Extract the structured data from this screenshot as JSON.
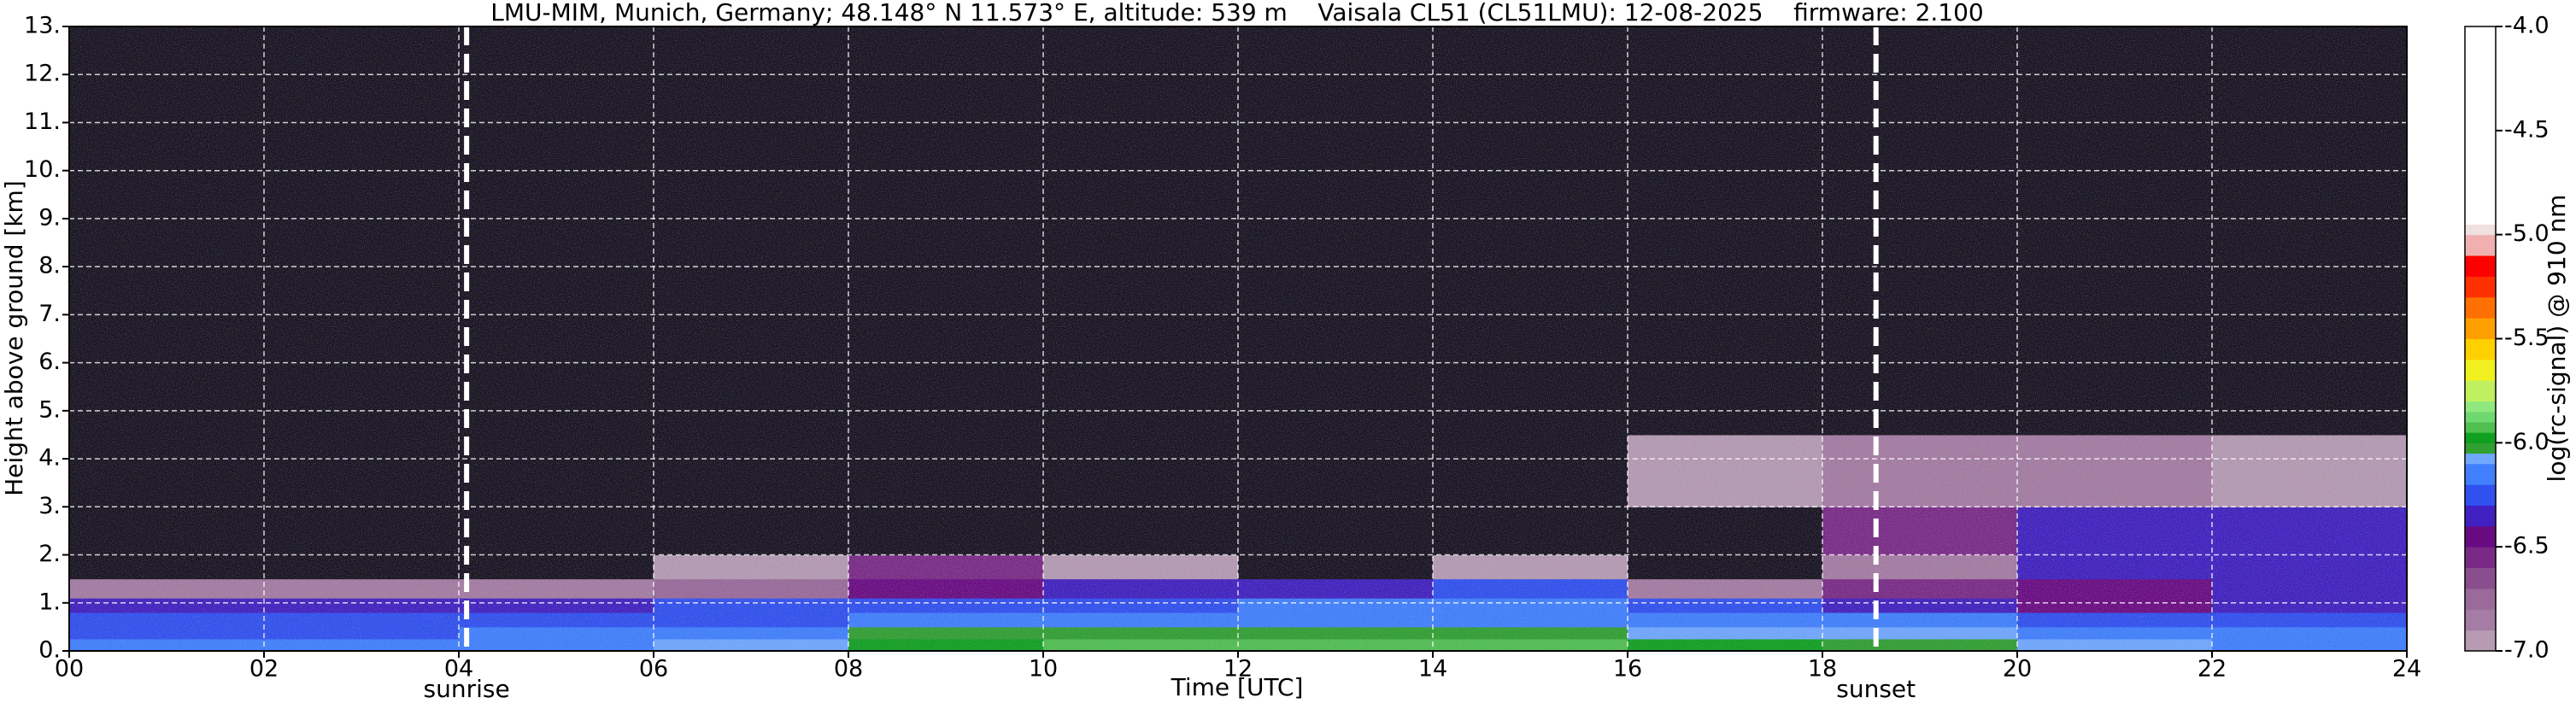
{
  "chart_data": {
    "type": "heatmap",
    "title": "LMU-MIM, Munich, Germany; 48.148° N 11.573° E, altitude: 539 m    Vaisala CL51 (CL51LMU): 12-08-2025    firmware: 2.100",
    "xlabel": "Time [UTC]",
    "ylabel": "Height above ground [km]",
    "colorbar_label": "log(rc-signal) @ 910 nm",
    "xlim": [
      0,
      24
    ],
    "xticks": [
      {
        "value": 0,
        "label": "00"
      },
      {
        "value": 2,
        "label": "02"
      },
      {
        "value": 4,
        "label": "04"
      },
      {
        "value": 6,
        "label": "06"
      },
      {
        "value": 8,
        "label": "08"
      },
      {
        "value": 10,
        "label": "10"
      },
      {
        "value": 12,
        "label": "12"
      },
      {
        "value": 14,
        "label": "14"
      },
      {
        "value": 16,
        "label": "16"
      },
      {
        "value": 18,
        "label": "18"
      },
      {
        "value": 20,
        "label": "20"
      },
      {
        "value": 22,
        "label": "22"
      },
      {
        "value": 24,
        "label": "24"
      }
    ],
    "ylim": [
      0,
      13
    ],
    "yticks": [
      {
        "value": 0,
        "label": "0."
      },
      {
        "value": 1,
        "label": "1."
      },
      {
        "value": 2,
        "label": "2."
      },
      {
        "value": 3,
        "label": "3."
      },
      {
        "value": 4,
        "label": "4."
      },
      {
        "value": 5,
        "label": "5."
      },
      {
        "value": 6,
        "label": "6."
      },
      {
        "value": 7,
        "label": "7."
      },
      {
        "value": 8,
        "label": "8."
      },
      {
        "value": 9,
        "label": "9."
      },
      {
        "value": 10,
        "label": "10."
      },
      {
        "value": 11,
        "label": "11."
      },
      {
        "value": 12,
        "label": "12."
      },
      {
        "value": 13,
        "label": "13."
      }
    ],
    "clim": [
      -7,
      -4
    ],
    "cticks": [
      {
        "value": -7,
        "label": "-7.0"
      },
      -6.5,
      {
        "value": -6,
        "label": "-6.0"
      },
      -5.5,
      {
        "value": -5,
        "label": "-5.0"
      },
      -4.5,
      {
        "value": -4,
        "label": "-4.0"
      }
    ],
    "grid": true,
    "under_color": "#17121f",
    "colorscale": [
      {
        "value": -7,
        "color": "#b69bb3"
      },
      {
        "value": -6.9,
        "color": "#a57ca3"
      },
      {
        "value": -6.8,
        "color": "#9a6a9a"
      },
      {
        "value": -6.7,
        "color": "#8a4e8e"
      },
      {
        "value": -6.6,
        "color": "#7a2a86"
      },
      {
        "value": -6.5,
        "color": "#6a0a82"
      },
      {
        "value": -6.4,
        "color": "#4020c0"
      },
      {
        "value": -6.3,
        "color": "#3050f0"
      },
      {
        "value": -6.2,
        "color": "#4080ff"
      },
      {
        "value": -6.1,
        "color": "#70a8ff"
      },
      {
        "value": -6.05,
        "color": "#30a030"
      },
      {
        "value": -6,
        "color": "#10a020"
      },
      {
        "value": -5.95,
        "color": "#50c050"
      },
      {
        "value": -5.9,
        "color": "#70d870"
      },
      {
        "value": -5.85,
        "color": "#90e880"
      },
      {
        "value": -5.8,
        "color": "#c0f060"
      },
      {
        "value": -5.7,
        "color": "#f0f020"
      },
      {
        "value": -5.6,
        "color": "#ffd000"
      },
      {
        "value": -5.5,
        "color": "#ffa000"
      },
      {
        "value": -5.4,
        "color": "#ff7000"
      },
      {
        "value": -5.3,
        "color": "#ff3000"
      },
      {
        "value": -5.2,
        "color": "#ff0000"
      },
      {
        "value": -5.1,
        "color": "#f0b0b0"
      },
      {
        "value": -5,
        "color": "#f0e0e0"
      },
      {
        "value": -4.95,
        "color": "#ffffff"
      }
    ],
    "x_edges": [
      0,
      2,
      4,
      6,
      8,
      10,
      12,
      14,
      16,
      18,
      20,
      22,
      24
    ],
    "y_edges": [
      0,
      0.25,
      0.5,
      0.8,
      1.1,
      1.5,
      2,
      3,
      4.5,
      13
    ],
    "z": [
      [
        -6.2,
        -6.2,
        -6.15,
        -6.1,
        -6.0,
        -5.95,
        -5.95,
        -5.95,
        -6.0,
        -6.05,
        -6.1,
        -6.15
      ],
      [
        -6.25,
        -6.25,
        -6.2,
        -6.15,
        -6.05,
        -6.05,
        -6.05,
        -6.05,
        -6.1,
        -6.1,
        -6.2,
        -6.2
      ],
      [
        -6.3,
        -6.3,
        -6.3,
        -6.25,
        -6.2,
        -6.15,
        -6.15,
        -6.15,
        -6.2,
        -6.2,
        -6.3,
        -6.3
      ],
      [
        -6.35,
        -6.35,
        -6.35,
        -6.3,
        -6.25,
        -6.25,
        -6.2,
        -6.2,
        -6.3,
        -6.4,
        -6.5,
        -6.35
      ],
      [
        -6.9,
        -6.9,
        -6.9,
        -6.8,
        -6.5,
        -6.4,
        -6.4,
        -6.3,
        -6.9,
        -6.6,
        -6.5,
        -6.4
      ],
      [
        -7.2,
        -7.2,
        -7.2,
        -7.0,
        -6.6,
        -7.0,
        -7.1,
        -7.0,
        -7.2,
        -6.9,
        -6.4,
        -6.35
      ],
      [
        -7.1,
        -7.2,
        -7.2,
        -7.2,
        -7.2,
        -7.2,
        -7.2,
        -7.2,
        -7.2,
        -6.6,
        -6.4,
        -6.4
      ],
      [
        -7.2,
        -7.3,
        -7.3,
        -7.3,
        -7.3,
        -7.3,
        -7.3,
        -7.3,
        -6.95,
        -6.9,
        -6.9,
        -7.0
      ],
      [
        -7.4,
        -7.4,
        -7.4,
        -7.4,
        -7.4,
        -7.4,
        -7.4,
        -7.4,
        -7.4,
        -7.4,
        -7.4,
        -7.4
      ]
    ],
    "annotations": [
      {
        "x": 4.08,
        "label": "sunrise"
      },
      {
        "x": 18.55,
        "label": "sunset"
      }
    ]
  }
}
